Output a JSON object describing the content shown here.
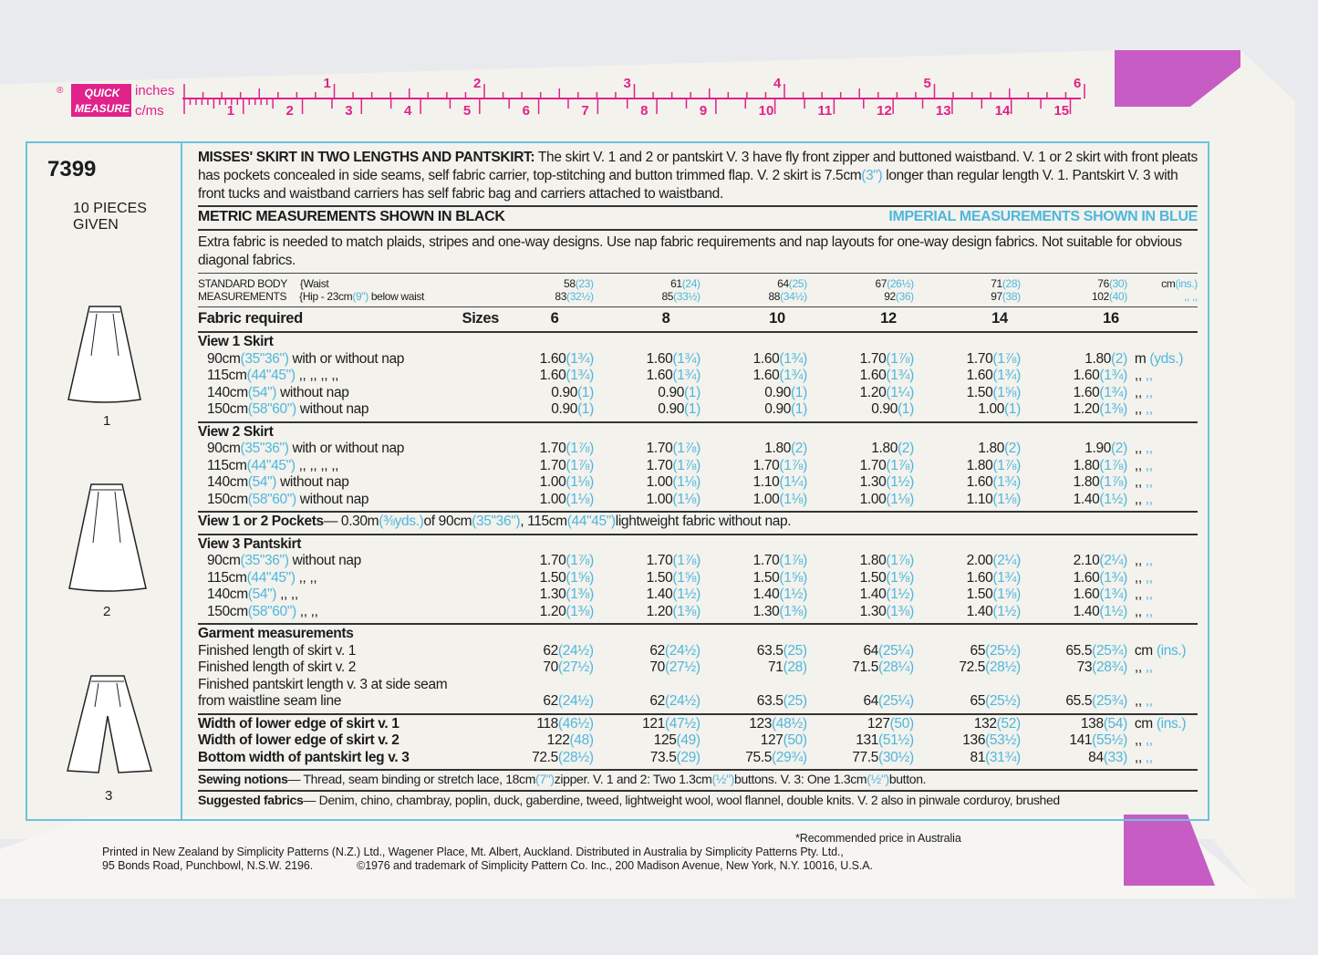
{
  "brand": {
    "mark": "®",
    "quick": "QUICK",
    "measure": "MEASURE",
    "inches": "inches",
    "cms": "c/ms",
    "inch_labels": [
      "1",
      "2",
      "3",
      "4",
      "5",
      "6"
    ],
    "cm_labels": [
      "1",
      "2",
      "3",
      "4",
      "5",
      "6",
      "7",
      "8",
      "9",
      "10",
      "11",
      "12",
      "13",
      "14",
      "15"
    ],
    "accent": "#e0228a",
    "flap": "#c75cc4",
    "border": "#6cc3df"
  },
  "pattern": {
    "number": "7399",
    "pieces": "10 PIECES",
    "given": "GIVEN",
    "views": [
      "1",
      "2",
      "3"
    ]
  },
  "intro": {
    "title": "MISSES' SKIRT IN TWO LENGTHS AND PANTSKIRT:",
    "text1": " The skirt V. 1 and 2 or pantskirt V. 3 have fly front zipper and buttoned waistband. V. 1 or 2 skirt with front pleats has pockets concealed in side seams, self fabric carrier, top-stitching and button trimmed flap. V. 2 skirt is 7.5cm",
    "text1_imp": "(3\")",
    "text2": " longer than regular length V. 1. Pantskirt V. 3 with front tucks and waistband carriers has self fabric bag and carriers attached to waistband."
  },
  "metric_note": "METRIC MEASUREMENTS SHOWN IN BLACK",
  "imperial_note": "IMPERIAL MEASUREMENTS SHOWN IN BLUE",
  "fabric_note": "Extra fabric is needed to match plaids, stripes and one-way designs. Use nap fabric requirements and nap layouts for one-way design fabrics. Not suitable for obvious diagonal fabrics.",
  "body": {
    "l1": "STANDARD BODY",
    "l2": "MEASUREMENTS",
    "w": "{Waist",
    "h": "{Hip - 23cm",
    "h_imp": "(9\")",
    "h2": " below waist",
    "waist": [
      [
        "58",
        "(23)"
      ],
      [
        "61",
        "(24)"
      ],
      [
        "64",
        "(25)"
      ],
      [
        "67",
        "(26½)"
      ],
      [
        "71",
        "(28)"
      ],
      [
        "76",
        "(30)"
      ]
    ],
    "hip": [
      [
        "83",
        "(32½)"
      ],
      [
        "85",
        "(33½)"
      ],
      [
        "88",
        "(34½)"
      ],
      [
        "92",
        "(36)"
      ],
      [
        "97",
        "(38)"
      ],
      [
        "102",
        "(40)"
      ]
    ],
    "unit": [
      "cm",
      "(ins.)"
    ],
    "ditto": ",,  ,,"
  },
  "sizes_header": {
    "label": "Fabric required",
    "sizes": "Sizes",
    "values": [
      "6",
      "8",
      "10",
      "12",
      "14",
      "16"
    ]
  },
  "sections": [
    {
      "title": "View 1   Skirt",
      "rows": [
        {
          "l": [
            [
              "90cm",
              0
            ],
            [
              "(35\"36\")",
              1
            ],
            [
              " with or without nap",
              0
            ]
          ],
          "c": [
            [
              "1.60",
              "(1¾)"
            ],
            [
              "1.60",
              "(1¾)"
            ],
            [
              "1.60",
              "(1¾)"
            ],
            [
              "1.70",
              "(1⅞)"
            ],
            [
              "1.70",
              "(1⅞)"
            ],
            [
              "1.80",
              "(2)"
            ]
          ],
          "u": [
            "m",
            "(yds.)"
          ]
        },
        {
          "l": [
            [
              "115cm",
              0
            ],
            [
              "(44\"45\")",
              1
            ],
            [
              "  ,,   ,,     ,,    ,,",
              0
            ]
          ],
          "c": [
            [
              "1.60",
              "(1¾)"
            ],
            [
              "1.60",
              "(1¾)"
            ],
            [
              "1.60",
              "(1¾)"
            ],
            [
              "1.60",
              "(1¾)"
            ],
            [
              "1.60",
              "(1¾)"
            ],
            [
              "1.60",
              "(1¾)"
            ]
          ],
          "u": [
            ",,",
            ",,"
          ]
        },
        {
          "l": [
            [
              "140cm",
              0
            ],
            [
              "(54\")",
              1
            ],
            [
              " without nap",
              0
            ]
          ],
          "c": [
            [
              "0.90",
              "(1)"
            ],
            [
              "0.90",
              "(1)"
            ],
            [
              "0.90",
              "(1)"
            ],
            [
              "1.20",
              "(1¼)"
            ],
            [
              "1.50",
              "(1⅝)"
            ],
            [
              "1.60",
              "(1¾)"
            ]
          ],
          "u": [
            ",,",
            ",,"
          ]
        },
        {
          "l": [
            [
              "150cm",
              0
            ],
            [
              "(58\"60\")",
              1
            ],
            [
              " without nap",
              0
            ]
          ],
          "c": [
            [
              "0.90",
              "(1)"
            ],
            [
              "0.90",
              "(1)"
            ],
            [
              "0.90",
              "(1)"
            ],
            [
              "0.90",
              "(1)"
            ],
            [
              "1.00",
              "(1)"
            ],
            [
              "1.20",
              "(1⅜)"
            ]
          ],
          "u": [
            ",,",
            ",,"
          ]
        }
      ]
    },
    {
      "title": "View 2   Skirt",
      "rows": [
        {
          "l": [
            [
              "90cm",
              0
            ],
            [
              "(35\"36\")",
              1
            ],
            [
              " with or without nap",
              0
            ]
          ],
          "c": [
            [
              "1.70",
              "(1⅞)"
            ],
            [
              "1.70",
              "(1⅞)"
            ],
            [
              "1.80",
              "(2)"
            ],
            [
              "1.80",
              "(2)"
            ],
            [
              "1.80",
              "(2)"
            ],
            [
              "1.90",
              "(2)"
            ]
          ],
          "u": [
            ",,",
            ",,"
          ]
        },
        {
          "l": [
            [
              "115cm",
              0
            ],
            [
              "(44\"45\")",
              1
            ],
            [
              "  ,,   ,,     ,,    ,,",
              0
            ]
          ],
          "c": [
            [
              "1.70",
              "(1⅞)"
            ],
            [
              "1.70",
              "(1⅞)"
            ],
            [
              "1.70",
              "(1⅞)"
            ],
            [
              "1.70",
              "(1⅞)"
            ],
            [
              "1.80",
              "(1⅞)"
            ],
            [
              "1.80",
              "(1⅞)"
            ]
          ],
          "u": [
            ",,",
            ",,"
          ]
        },
        {
          "l": [
            [
              "140cm",
              0
            ],
            [
              "(54\")",
              1
            ],
            [
              " without nap",
              0
            ]
          ],
          "c": [
            [
              "1.00",
              "(1⅛)"
            ],
            [
              "1.00",
              "(1⅛)"
            ],
            [
              "1.10",
              "(1¼)"
            ],
            [
              "1.30",
              "(1½)"
            ],
            [
              "1.60",
              "(1¾)"
            ],
            [
              "1.80",
              "(1⅞)"
            ]
          ],
          "u": [
            ",,",
            ",,"
          ]
        },
        {
          "l": [
            [
              "150cm",
              0
            ],
            [
              "(58\"60\")",
              1
            ],
            [
              " without nap",
              0
            ]
          ],
          "c": [
            [
              "1.00",
              "(1⅛)"
            ],
            [
              "1.00",
              "(1⅛)"
            ],
            [
              "1.00",
              "(1⅛)"
            ],
            [
              "1.00",
              "(1⅛)"
            ],
            [
              "1.10",
              "(1⅛)"
            ],
            [
              "1.40",
              "(1½)"
            ]
          ],
          "u": [
            ",,",
            ",,"
          ]
        }
      ]
    },
    {
      "pockets": [
        [
          "View 1 or 2   Pockets",
          2
        ],
        [
          " — 0.30m",
          0
        ],
        [
          "(⅜yds.)",
          1
        ],
        [
          " of 90cm",
          0
        ],
        [
          "(35\"36\")",
          1
        ],
        [
          ", 115cm",
          0
        ],
        [
          "(44\"45\")",
          1
        ],
        [
          " lightweight fabric without nap.",
          0
        ]
      ]
    },
    {
      "title": "View 3   Pantskirt",
      "rows": [
        {
          "l": [
            [
              "90cm",
              0
            ],
            [
              "(35\"36\")",
              1
            ],
            [
              " without nap",
              0
            ]
          ],
          "c": [
            [
              "1.70",
              "(1⅞)"
            ],
            [
              "1.70",
              "(1⅞)"
            ],
            [
              "1.70",
              "(1⅞)"
            ],
            [
              "1.80",
              "(1⅞)"
            ],
            [
              "2.00",
              "(2¼)"
            ],
            [
              "2.10",
              "(2¼)"
            ]
          ],
          "u": [
            ",,",
            ",,"
          ]
        },
        {
          "l": [
            [
              "115cm",
              0
            ],
            [
              "(44\"45\")",
              1
            ],
            [
              "      ,,    ,,",
              0
            ]
          ],
          "c": [
            [
              "1.50",
              "(1⅝)"
            ],
            [
              "1.50",
              "(1⅝)"
            ],
            [
              "1.50",
              "(1⅝)"
            ],
            [
              "1.50",
              "(1⅝)"
            ],
            [
              "1.60",
              "(1¾)"
            ],
            [
              "1.60",
              "(1¾)"
            ]
          ],
          "u": [
            ",,",
            ",,"
          ]
        },
        {
          "l": [
            [
              "140cm",
              0
            ],
            [
              "(54\")",
              1
            ],
            [
              "             ,,    ,,",
              0
            ]
          ],
          "c": [
            [
              "1.30",
              "(1⅜)"
            ],
            [
              "1.40",
              "(1½)"
            ],
            [
              "1.40",
              "(1½)"
            ],
            [
              "1.40",
              "(1½)"
            ],
            [
              "1.50",
              "(1⅝)"
            ],
            [
              "1.60",
              "(1¾)"
            ]
          ],
          "u": [
            ",,",
            ",,"
          ]
        },
        {
          "l": [
            [
              "150cm",
              0
            ],
            [
              "(58\"60\")",
              1
            ],
            [
              "      ,,    ,,",
              0
            ]
          ],
          "c": [
            [
              "1.20",
              "(1⅜)"
            ],
            [
              "1.20",
              "(1⅜)"
            ],
            [
              "1.30",
              "(1⅜)"
            ],
            [
              "1.30",
              "(1⅜)"
            ],
            [
              "1.40",
              "(1½)"
            ],
            [
              "1.40",
              "(1½)"
            ]
          ],
          "u": [
            ",,",
            ",,"
          ]
        }
      ]
    },
    {
      "title": "Garment measurements",
      "rows": [
        {
          "l": [
            [
              "Finished length of skirt v. 1",
              0
            ]
          ],
          "c": [
            [
              "62",
              "(24½)"
            ],
            [
              "62",
              "(24½)"
            ],
            [
              "63.5",
              "(25)"
            ],
            [
              "64",
              "(25¼)"
            ],
            [
              "65",
              "(25½)"
            ],
            [
              "65.5",
              "(25¾)"
            ]
          ],
          "u": [
            "cm",
            "(ins.)"
          ]
        },
        {
          "l": [
            [
              "Finished length of skirt v. 2",
              0
            ]
          ],
          "c": [
            [
              "70",
              "(27½)"
            ],
            [
              "70",
              "(27½)"
            ],
            [
              "71",
              "(28)"
            ],
            [
              "71.5",
              "(28¼)"
            ],
            [
              "72.5",
              "(28½)"
            ],
            [
              "73",
              "(28¾)"
            ]
          ],
          "u": [
            ",,",
            ",,"
          ]
        },
        {
          "l": [
            [
              "Finished pantskirt length v. 3 at side seam",
              0
            ]
          ],
          "c": [],
          "u": []
        },
        {
          "l": [
            [
              "from waistline seam line",
              0
            ]
          ],
          "c": [
            [
              "62",
              "(24½)"
            ],
            [
              "62",
              "(24½)"
            ],
            [
              "63.5",
              "(25)"
            ],
            [
              "64",
              "(25¼)"
            ],
            [
              "65",
              "(25½)"
            ],
            [
              "65.5",
              "(25¾)"
            ]
          ],
          "u": [
            ",,",
            ",,"
          ]
        }
      ]
    },
    {
      "title": "",
      "bold": true,
      "rows": [
        {
          "l": [
            [
              "Width of lower edge of skirt v. 1",
              2
            ]
          ],
          "c": [
            [
              "118",
              "(46½)"
            ],
            [
              "121",
              "(47½)"
            ],
            [
              "123",
              "(48½)"
            ],
            [
              "127",
              "(50)"
            ],
            [
              "132",
              "(52)"
            ],
            [
              "138",
              "(54)"
            ]
          ],
          "u": [
            "cm",
            "(ins.)"
          ]
        },
        {
          "l": [
            [
              "Width of lower edge of skirt v. 2",
              2
            ]
          ],
          "c": [
            [
              "122",
              "(48)"
            ],
            [
              "125",
              "(49)"
            ],
            [
              "127",
              "(50)"
            ],
            [
              "131",
              "(51½)"
            ],
            [
              "136",
              "(53½)"
            ],
            [
              "141",
              "(55½)"
            ]
          ],
          "u": [
            ",,",
            ",,"
          ]
        },
        {
          "l": [
            [
              "Bottom width of pantskirt leg v. 3",
              2
            ]
          ],
          "c": [
            [
              "72.5",
              "(28½)"
            ],
            [
              "73.5",
              "(29)"
            ],
            [
              "75.5",
              "(29¾)"
            ],
            [
              "77.5",
              "(30½)"
            ],
            [
              "81",
              "(31¾)"
            ],
            [
              "84",
              "(33)"
            ]
          ],
          "u": [
            ",,",
            ",,"
          ]
        }
      ]
    }
  ],
  "notions": [
    [
      "Sewing notions",
      2
    ],
    [
      " — Thread, seam binding or stretch lace, 18cm",
      0
    ],
    [
      "(7\")",
      1
    ],
    [
      " zipper. V. 1 and 2: Two 1.3cm",
      0
    ],
    [
      "(½\")",
      1
    ],
    [
      " buttons. V. 3: One 1.3cm",
      0
    ],
    [
      "(½\")",
      1
    ],
    [
      " button.",
      0
    ]
  ],
  "fabrics": [
    [
      "Suggested fabrics",
      2
    ],
    [
      " — Denim, chino, chambray, poplin, duck, gaberdine, tweed, lightweight wool, wool flannel, double knits. V. 2 also in pinwale corduroy, brushed",
      0
    ]
  ],
  "footer": {
    "price": "*Recommended price in Australia",
    "l1": "Printed in New Zealand by Simplicity Patterns (N.Z.) Ltd., Wagener Place, Mt. Albert, Auckland. Distributed in Australia by Simplicity Patterns Pty. Ltd.,",
    "l2a": "95 Bonds Road, Punchbowl, N.S.W. 2196.",
    "l2b": "©1976 and trademark of Simplicity Pattern Co. Inc., 200 Madison Avenue, New York, N.Y. 10016, U.S.A."
  }
}
